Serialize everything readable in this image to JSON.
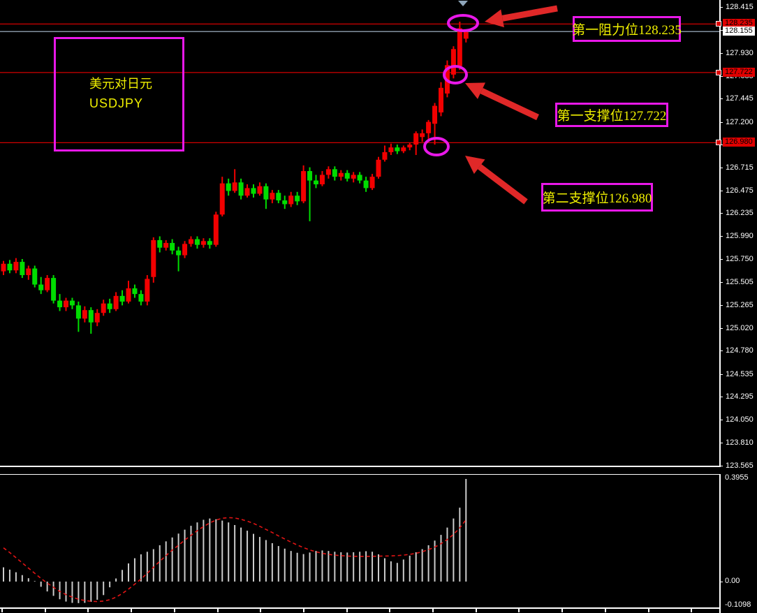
{
  "symbol_box": {
    "line1": "美元对日元",
    "line2": "USDJPY"
  },
  "annotations": [
    {
      "id": "resistance-1",
      "label": "第一阻力位128.235"
    },
    {
      "id": "support-1",
      "label": "第一支撑位127.722"
    },
    {
      "id": "support-2",
      "label": "第二支撑位126.980"
    }
  ],
  "colors": {
    "bull_candle": "#f20000",
    "bear_candle": "#00dd00",
    "level_line": "#d10000",
    "current_price_line": "#8fa0b0",
    "magenta": "#e818e8",
    "yellow_text": "#efef00",
    "arrow_red": "#e02828",
    "histogram_bar": "#cccccc",
    "signal_line": "#e01414",
    "axis_text": "#ffffff",
    "label_red_bg": "#e00000",
    "label_white_bg": "#ffffff",
    "marker_triangle": "#8fa6ba"
  },
  "price_axis": {
    "ticks": [
      "128.415",
      "128.175",
      "127.930",
      "127.685",
      "127.445",
      "127.200",
      "126.960",
      "126.715",
      "126.475",
      "126.235",
      "125.990",
      "125.750",
      "125.505",
      "125.265",
      "125.020",
      "124.780",
      "124.535",
      "124.295",
      "124.050",
      "123.810",
      "123.565"
    ],
    "special_labels": [
      {
        "text": "128.235",
        "price": 128.235,
        "bg": "red"
      },
      {
        "text": "128.155",
        "price": 128.155,
        "bg": "white"
      },
      {
        "text": "127.722",
        "price": 127.722,
        "bg": "red"
      },
      {
        "text": "126.980",
        "price": 126.98,
        "bg": "red"
      }
    ]
  },
  "indicator_axis": {
    "max": "0.3955",
    "zero": "0.00",
    "min": "-0.1098"
  },
  "chart_data": {
    "type": "candlestick",
    "symbol": "USDJPY",
    "symbol_cn": "美元对日元",
    "current_price": 128.155,
    "price_range_top": 128.415,
    "price_range_bottom": 123.565,
    "levels": [
      {
        "name": "第一阻力位",
        "price": 128.235
      },
      {
        "name": "第一支撑位",
        "price": 127.722
      },
      {
        "name": "第二支撑位",
        "price": 126.98
      }
    ],
    "candles_ohlc": [
      [
        125.62,
        125.73,
        125.58,
        125.7
      ],
      [
        125.7,
        125.74,
        125.6,
        125.63
      ],
      [
        125.63,
        125.76,
        125.6,
        125.72
      ],
      [
        125.72,
        125.75,
        125.55,
        125.58
      ],
      [
        125.58,
        125.68,
        125.53,
        125.65
      ],
      [
        125.65,
        125.68,
        125.45,
        125.48
      ],
      [
        125.48,
        125.56,
        125.38,
        125.42
      ],
      [
        125.42,
        125.58,
        125.4,
        125.55
      ],
      [
        125.55,
        125.58,
        125.28,
        125.31
      ],
      [
        125.31,
        125.38,
        125.2,
        125.24
      ],
      [
        125.24,
        125.34,
        125.2,
        125.31
      ],
      [
        125.31,
        125.34,
        125.22,
        125.26
      ],
      [
        125.26,
        125.3,
        124.98,
        125.12
      ],
      [
        125.12,
        125.25,
        125.08,
        125.21
      ],
      [
        125.21,
        125.24,
        124.96,
        125.08
      ],
      [
        125.08,
        125.22,
        125.04,
        125.18
      ],
      [
        125.18,
        125.32,
        125.15,
        125.28
      ],
      [
        125.28,
        125.33,
        125.18,
        125.22
      ],
      [
        125.22,
        125.4,
        125.2,
        125.36
      ],
      [
        125.36,
        125.42,
        125.26,
        125.3
      ],
      [
        125.3,
        125.52,
        125.28,
        125.44
      ],
      [
        125.44,
        125.48,
        125.34,
        125.38
      ],
      [
        125.38,
        125.42,
        125.26,
        125.3
      ],
      [
        125.3,
        125.58,
        125.26,
        125.54
      ],
      [
        125.56,
        125.98,
        125.5,
        125.95
      ],
      [
        125.95,
        125.99,
        125.82,
        125.87
      ],
      [
        125.87,
        125.95,
        125.84,
        125.92
      ],
      [
        125.92,
        125.96,
        125.8,
        125.84
      ],
      [
        125.84,
        125.88,
        125.62,
        125.79
      ],
      [
        125.79,
        125.94,
        125.76,
        125.91
      ],
      [
        125.91,
        125.99,
        125.88,
        125.96
      ],
      [
        125.96,
        125.99,
        125.86,
        125.9
      ],
      [
        125.9,
        125.97,
        125.87,
        125.94
      ],
      [
        125.94,
        125.97,
        125.86,
        125.9
      ],
      [
        125.9,
        126.25,
        125.88,
        126.22
      ],
      [
        126.22,
        126.62,
        126.2,
        126.55
      ],
      [
        126.55,
        126.6,
        126.42,
        126.47
      ],
      [
        126.47,
        126.7,
        126.45,
        126.56
      ],
      [
        126.56,
        126.6,
        126.38,
        126.42
      ],
      [
        126.42,
        126.54,
        126.4,
        126.5
      ],
      [
        126.5,
        126.54,
        126.4,
        126.44
      ],
      [
        126.44,
        126.56,
        126.42,
        126.52
      ],
      [
        126.52,
        126.55,
        126.28,
        126.38
      ],
      [
        126.38,
        126.48,
        126.34,
        126.45
      ],
      [
        126.45,
        126.48,
        126.34,
        126.37
      ],
      [
        126.37,
        126.42,
        126.28,
        126.33
      ],
      [
        126.33,
        126.46,
        126.3,
        126.42
      ],
      [
        126.42,
        126.46,
        126.32,
        126.36
      ],
      [
        126.36,
        126.74,
        126.34,
        126.68
      ],
      [
        126.68,
        126.72,
        126.15,
        126.58
      ],
      [
        126.58,
        126.64,
        126.5,
        126.54
      ],
      [
        126.54,
        126.68,
        126.52,
        126.64
      ],
      [
        126.64,
        126.73,
        126.6,
        126.7
      ],
      [
        126.7,
        126.73,
        126.58,
        126.62
      ],
      [
        126.62,
        126.69,
        126.58,
        126.66
      ],
      [
        126.66,
        126.69,
        126.57,
        126.6
      ],
      [
        126.6,
        126.67,
        126.56,
        126.64
      ],
      [
        126.64,
        126.67,
        126.55,
        126.58
      ],
      [
        126.58,
        126.62,
        126.46,
        126.5
      ],
      [
        126.5,
        126.65,
        126.48,
        126.62
      ],
      [
        126.62,
        126.83,
        126.6,
        126.8
      ],
      [
        126.8,
        126.95,
        126.78,
        126.88
      ],
      [
        126.88,
        126.97,
        126.85,
        126.93
      ],
      [
        126.93,
        126.96,
        126.86,
        126.89
      ],
      [
        126.89,
        126.95,
        126.87,
        126.93
      ],
      [
        126.93,
        126.98,
        126.9,
        126.96
      ],
      [
        126.96,
        127.1,
        126.85,
        127.08
      ],
      [
        127.04,
        127.12,
        126.99,
        127.08
      ],
      [
        127.08,
        127.22,
        127.0,
        127.2
      ],
      [
        127.18,
        127.4,
        126.96,
        127.37
      ],
      [
        127.3,
        127.62,
        127.26,
        127.56
      ],
      [
        127.5,
        127.85,
        127.46,
        127.8
      ],
      [
        127.7,
        128.0,
        127.66,
        127.97
      ],
      [
        127.79,
        128.26,
        127.75,
        128.19
      ],
      [
        128.08,
        128.17,
        128.04,
        128.15
      ]
    ],
    "indicator": {
      "type": "histogram_with_signal",
      "max_label": "0.3955",
      "zero_label": "0.00",
      "min_label": "-0.1098",
      "histogram": [
        0.055,
        0.046,
        0.036,
        0.025,
        0.013,
        0.002,
        -0.02,
        -0.038,
        -0.055,
        -0.068,
        -0.077,
        -0.082,
        -0.083,
        -0.082,
        -0.078,
        -0.07,
        -0.052,
        -0.022,
        0.012,
        0.045,
        0.07,
        0.09,
        0.105,
        0.115,
        0.125,
        0.14,
        0.155,
        0.17,
        0.185,
        0.2,
        0.215,
        0.228,
        0.238,
        0.243,
        0.24,
        0.235,
        0.228,
        0.218,
        0.208,
        0.196,
        0.184,
        0.172,
        0.16,
        0.148,
        0.137,
        0.127,
        0.118,
        0.111,
        0.106,
        0.112,
        0.118,
        0.12,
        0.118,
        0.115,
        0.113,
        0.112,
        0.113,
        0.115,
        0.117,
        0.115,
        0.105,
        0.09,
        0.078,
        0.072,
        0.085,
        0.1,
        0.113,
        0.125,
        0.14,
        0.158,
        0.18,
        0.208,
        0.243,
        0.285,
        0.3955
      ],
      "signal": [
        0.13,
        0.112,
        0.092,
        0.072,
        0.052,
        0.032,
        0.012,
        -0.006,
        -0.022,
        -0.038,
        -0.05,
        -0.06,
        -0.068,
        -0.073,
        -0.076,
        -0.077,
        -0.075,
        -0.07,
        -0.06,
        -0.046,
        -0.029,
        -0.01,
        0.01,
        0.032,
        0.055,
        0.078,
        0.1,
        0.121,
        0.14,
        0.16,
        0.178,
        0.196,
        0.212,
        0.226,
        0.237,
        0.244,
        0.2465,
        0.245,
        0.24,
        0.233,
        0.224,
        0.213,
        0.201,
        0.189,
        0.176,
        0.164,
        0.152,
        0.141,
        0.131,
        0.122,
        0.115,
        0.109,
        0.105,
        0.102,
        0.1,
        0.0985,
        0.0975,
        0.097,
        0.097,
        0.0975,
        0.098,
        0.0985,
        0.099,
        0.1,
        0.102,
        0.105,
        0.109,
        0.115,
        0.123,
        0.133,
        0.146,
        0.162,
        0.182,
        0.207,
        0.238
      ]
    }
  }
}
